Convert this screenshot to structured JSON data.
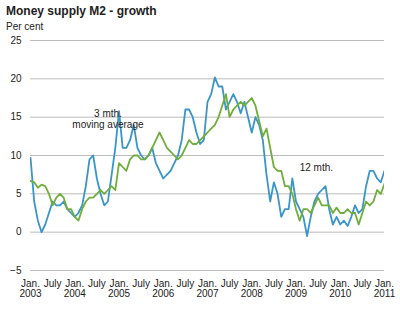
{
  "chart_data": {
    "type": "line",
    "title": "Money supply M2 - growth",
    "subtitle": "Per cent",
    "categories": [
      "Jan.\n2003",
      null,
      null,
      null,
      null,
      null,
      "July",
      null,
      null,
      null,
      null,
      null,
      "Jan.\n2004",
      null,
      null,
      null,
      null,
      null,
      "July",
      null,
      null,
      null,
      null,
      null,
      "Jan.\n2005",
      null,
      null,
      null,
      null,
      null,
      "July",
      null,
      null,
      null,
      null,
      null,
      "Jan.\n2006",
      null,
      null,
      null,
      null,
      null,
      "July",
      null,
      null,
      null,
      null,
      null,
      "Jan.\n2007",
      null,
      null,
      null,
      null,
      null,
      "July",
      null,
      null,
      null,
      null,
      null,
      "Jan.\n2008",
      null,
      null,
      null,
      null,
      null,
      "July",
      null,
      null,
      null,
      null,
      null,
      "Jan.\n2009",
      null,
      null,
      null,
      null,
      null,
      "July",
      null,
      null,
      null,
      null,
      null,
      "Jan.\n2010",
      null,
      null,
      null,
      null,
      null,
      "July",
      null,
      null,
      null,
      null,
      null,
      "Jan.\n2011"
    ],
    "series": [
      {
        "name": "3 mth.\nmoving average",
        "color": "#3a95c9",
        "values": [
          9.7,
          4,
          1.5,
          0,
          1,
          2.5,
          4,
          3.5,
          3.5,
          4,
          3,
          2.5,
          2,
          2.5,
          3.5,
          6,
          9.5,
          10,
          7,
          5,
          3.5,
          4,
          7.5,
          11,
          15.8,
          11,
          11,
          12,
          14,
          11,
          10,
          9.5,
          10,
          11,
          9,
          8,
          7,
          7.5,
          8,
          9,
          10,
          12,
          16,
          16,
          15,
          13,
          11.5,
          12,
          17,
          18,
          20.2,
          19,
          19,
          16,
          17,
          18,
          17,
          15.5,
          17,
          15,
          13,
          15,
          14,
          12,
          7.5,
          4,
          6.5,
          5,
          2,
          3,
          3,
          7,
          4,
          3,
          2,
          -0.5,
          2,
          4,
          5,
          5.5,
          6,
          3,
          1,
          2,
          1,
          1.5,
          0.8,
          2,
          3.5,
          2.5,
          3,
          6,
          8,
          8,
          7,
          6.5,
          8
        ]
      },
      {
        "name": "12 mth.",
        "color": "#6fae3a",
        "values": [
          6.7,
          6.5,
          5.8,
          6.2,
          6,
          5,
          3.5,
          4.5,
          5,
          4.5,
          3,
          3,
          2,
          1.5,
          3,
          4,
          4.5,
          4.5,
          5,
          5.5,
          5,
          5.5,
          6,
          5.5,
          9,
          8.5,
          8,
          9.5,
          10,
          10,
          9.5,
          9.5,
          10,
          11,
          12,
          13,
          12,
          11,
          10.5,
          10,
          9.5,
          10,
          11,
          12,
          11.5,
          11.5,
          12,
          12.5,
          13,
          13.5,
          14,
          15,
          16.5,
          18,
          15,
          16,
          16.5,
          17,
          16.5,
          17,
          17.5,
          16.5,
          14.5,
          12.5,
          13.5,
          11,
          8.5,
          8,
          8,
          6,
          6,
          5,
          3,
          1.5,
          3,
          3,
          2.5,
          3.5,
          4.5,
          3.5,
          3.5,
          3.5,
          2.5,
          3.2,
          2.5,
          2.5,
          3,
          2.5,
          2.5,
          1,
          2.5,
          4,
          3.5,
          4,
          5.5,
          5,
          6.3
        ]
      }
    ],
    "ylim": [
      -5,
      25
    ],
    "yticks": [
      -5,
      0,
      5,
      10,
      15,
      20,
      25
    ],
    "grid": true
  }
}
